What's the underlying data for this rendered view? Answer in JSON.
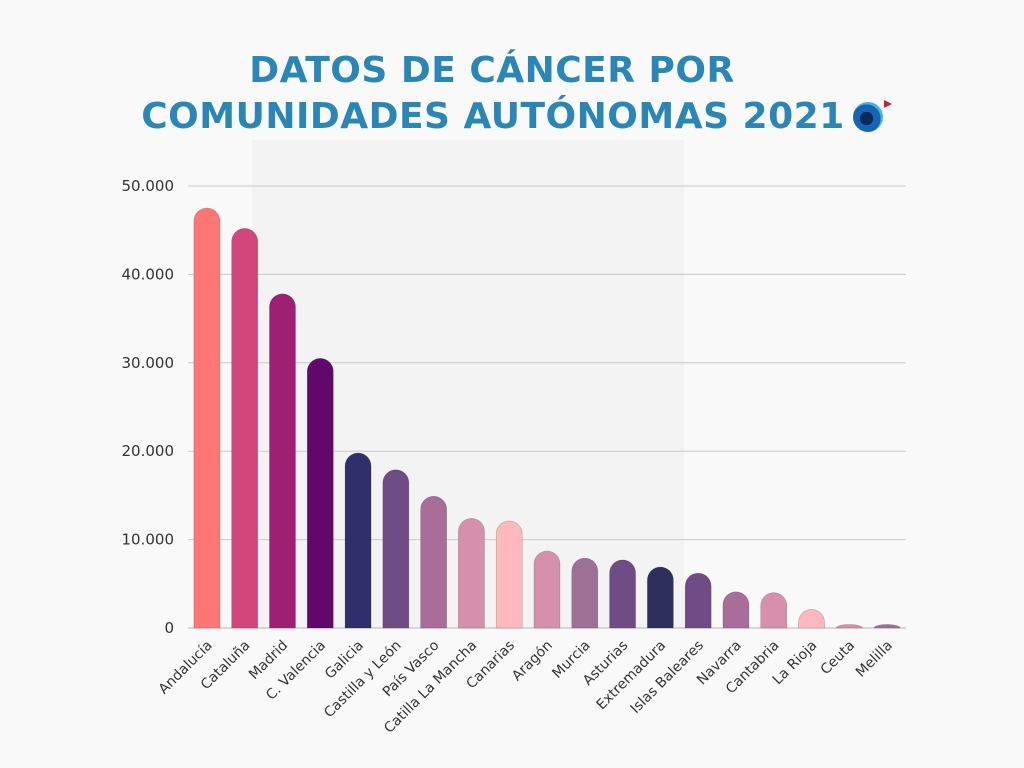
{
  "title": {
    "line1": "DATOS DE CÁNCER POR",
    "line2": "COMUNIDADES AUTÓNOMAS 2021"
  },
  "chart_data": {
    "type": "bar",
    "title": "DATOS DE CÁNCER POR COMUNIDADES AUTÓNOMAS 2021",
    "xlabel": "",
    "ylabel": "",
    "ylim": [
      0,
      50000
    ],
    "yticks": [
      0,
      10000,
      20000,
      30000,
      40000,
      50000
    ],
    "ytick_labels": [
      "0",
      "10.000",
      "20.000",
      "30.000",
      "40.000",
      "50.000"
    ],
    "grid": true,
    "categories": [
      "Andalucía",
      "Cataluña",
      "Madrid",
      "C. Valencia",
      "Galicia",
      "Castilla y León",
      "País Vasco",
      "Catilla La Mancha",
      "Canarias",
      "Aragón",
      "Murcia",
      "Asturias",
      "Extremadura",
      "Islas Baleares",
      "Navarra",
      "Cantabria",
      "La Rioja",
      "Ceuta",
      "Melilla"
    ],
    "values": [
      47500,
      45200,
      37800,
      30500,
      19800,
      17900,
      14900,
      12400,
      12100,
      8700,
      7900,
      7700,
      6900,
      6200,
      4100,
      4000,
      2100,
      400,
      400
    ],
    "colors": [
      "#ff7675",
      "#d3467b",
      "#9e1f74",
      "#62086a",
      "#2f2f6b",
      "#6f4c85",
      "#a86d99",
      "#d690ab",
      "#ffb8be",
      "#d690ab",
      "#9e7096",
      "#6f4c85",
      "#2f2f5e",
      "#6f4c85",
      "#a86d99",
      "#d690ab",
      "#ffb8be",
      "#d690ab",
      "#9e7096"
    ]
  }
}
